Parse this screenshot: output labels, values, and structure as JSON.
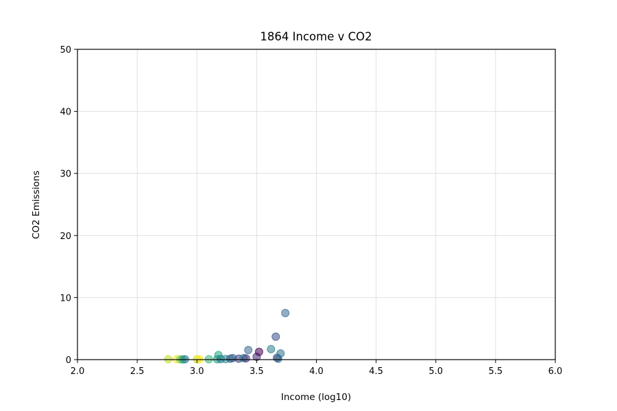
{
  "chart_data": {
    "type": "scatter",
    "title": "1864 Income v CO2",
    "xlabel": "Income (log10)",
    "ylabel": "CO2 Emissions",
    "xlim": [
      2.0,
      6.0
    ],
    "ylim": [
      0,
      50
    ],
    "xticks": [
      "2.0",
      "2.5",
      "3.0",
      "3.5",
      "4.0",
      "4.5",
      "5.0",
      "5.5",
      "6.0"
    ],
    "yticks": [
      "0",
      "10",
      "20",
      "30",
      "40",
      "50"
    ],
    "grid": true,
    "marker_alpha": 0.55,
    "points": [
      {
        "x": 2.76,
        "y": 0.05,
        "color": "#bddf26"
      },
      {
        "x": 2.83,
        "y": 0.05,
        "color": "#fde725"
      },
      {
        "x": 2.86,
        "y": 0.05,
        "color": "#7ad151"
      },
      {
        "x": 2.88,
        "y": 0.03,
        "color": "#22a884"
      },
      {
        "x": 2.9,
        "y": 0.05,
        "color": "#2a788e"
      },
      {
        "x": 3.0,
        "y": 0.05,
        "color": "#d2e21b"
      },
      {
        "x": 3.02,
        "y": 0.05,
        "color": "#fde725"
      },
      {
        "x": 3.1,
        "y": 0.05,
        "color": "#35b779"
      },
      {
        "x": 3.18,
        "y": 0.75,
        "color": "#22a884"
      },
      {
        "x": 3.17,
        "y": 0.05,
        "color": "#1f9e89"
      },
      {
        "x": 3.2,
        "y": 0.1,
        "color": "#2a788e"
      },
      {
        "x": 3.24,
        "y": 0.1,
        "color": "#21918c"
      },
      {
        "x": 3.28,
        "y": 0.15,
        "color": "#3b528b"
      },
      {
        "x": 3.3,
        "y": 0.25,
        "color": "#31688e"
      },
      {
        "x": 3.35,
        "y": 0.15,
        "color": "#414487"
      },
      {
        "x": 3.39,
        "y": 0.25,
        "color": "#26828e"
      },
      {
        "x": 3.41,
        "y": 0.2,
        "color": "#46327e"
      },
      {
        "x": 3.43,
        "y": 1.55,
        "color": "#3e6a96"
      },
      {
        "x": 3.5,
        "y": 0.45,
        "color": "#482878"
      },
      {
        "x": 3.52,
        "y": 1.25,
        "color": "#440154"
      },
      {
        "x": 3.62,
        "y": 1.7,
        "color": "#2e7f8e"
      },
      {
        "x": 3.66,
        "y": 3.7,
        "color": "#3b528b"
      },
      {
        "x": 3.67,
        "y": 0.3,
        "color": "#3b528b"
      },
      {
        "x": 3.68,
        "y": 0.15,
        "color": "#31688e"
      },
      {
        "x": 3.7,
        "y": 1.0,
        "color": "#2c728e"
      },
      {
        "x": 3.74,
        "y": 7.5,
        "color": "#3b6a96"
      }
    ]
  }
}
